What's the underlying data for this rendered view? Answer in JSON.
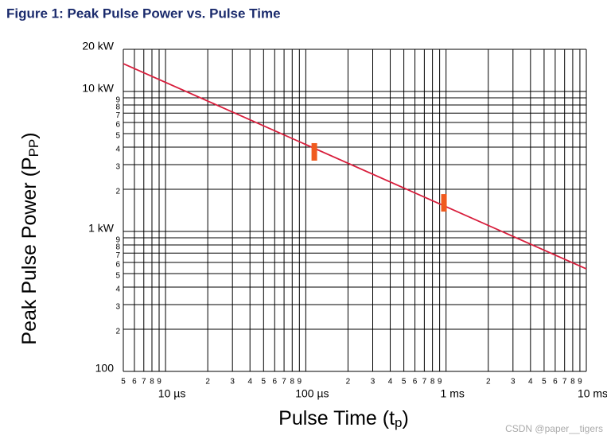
{
  "chart_data": {
    "type": "line",
    "title": "Figure 1: Peak Pulse Power vs. Pulse Time",
    "x_label": {
      "text": "Pulse Time (t",
      "sub": "p",
      "end": ")"
    },
    "y_label": {
      "text": "Peak Pulse Power (P",
      "sub": "PP",
      "end": ")"
    },
    "watermark": "CSDN @paper__tigers",
    "log_x": true,
    "log_y": true,
    "grid": true,
    "xlim": [
      5,
      10000
    ],
    "ylim": [
      100,
      20000
    ],
    "xticks": [
      5,
      6,
      7,
      8,
      9,
      {
        "value": 10,
        "label": "10 µs"
      },
      {
        "value": 20,
        "label": "2"
      },
      {
        "value": 30,
        "label": "3"
      },
      {
        "value": 40,
        "label": "4"
      },
      {
        "value": 50,
        "label": "5"
      },
      {
        "value": 60,
        "label": "6"
      },
      {
        "value": 70,
        "label": "7"
      },
      {
        "value": 80,
        "label": "8"
      },
      {
        "value": 90,
        "label": "9"
      },
      {
        "value": 100,
        "label": "100 µs"
      },
      {
        "value": 200,
        "label": "2"
      },
      {
        "value": 300,
        "label": "3"
      },
      {
        "value": 400,
        "label": "4"
      },
      {
        "value": 500,
        "label": "5"
      },
      {
        "value": 600,
        "label": "6"
      },
      {
        "value": 700,
        "label": "7"
      },
      {
        "value": 800,
        "label": "8"
      },
      {
        "value": 900,
        "label": "9"
      },
      {
        "value": 1000,
        "label": "1 ms"
      },
      {
        "value": 2000,
        "label": "2"
      },
      {
        "value": 3000,
        "label": "3"
      },
      {
        "value": 4000,
        "label": "4"
      },
      {
        "value": 5000,
        "label": "5"
      },
      {
        "value": 6000,
        "label": "6"
      },
      {
        "value": 7000,
        "label": "7"
      },
      {
        "value": 8000,
        "label": "8"
      },
      {
        "value": 9000,
        "label": "9"
      },
      {
        "value": 10000,
        "label": "10 ms"
      }
    ],
    "yticks": [
      100,
      {
        "value": 200,
        "label": "2"
      },
      {
        "value": 300,
        "label": "3"
      },
      {
        "value": 400,
        "label": "4"
      },
      {
        "value": 500,
        "label": "5"
      },
      {
        "value": 600,
        "label": "6"
      },
      {
        "value": 700,
        "label": "7"
      },
      {
        "value": 800,
        "label": "8"
      },
      {
        "value": 900,
        "label": "9"
      },
      {
        "value": 1000,
        "label": "1 kW"
      },
      {
        "value": 2000,
        "label": "2"
      },
      {
        "value": 3000,
        "label": "3"
      },
      {
        "value": 4000,
        "label": "4"
      },
      {
        "value": 5000,
        "label": "5"
      },
      {
        "value": 6000,
        "label": "6"
      },
      {
        "value": 7000,
        "label": "7"
      },
      {
        "value": 8000,
        "label": "8"
      },
      {
        "value": 9000,
        "label": "9"
      },
      {
        "value": 10000,
        "label": "10 kW"
      },
      {
        "value": 20000,
        "label": "20 kW"
      }
    ],
    "series": [
      {
        "color": "#d81e3c",
        "x": [
          5,
          10000
        ],
        "values": [
          15800,
          540
        ]
      },
      {
        "color": "#f05a1e",
        "marker": "bar",
        "x": [
          115,
          966
        ],
        "values": [
          3700,
          1600
        ]
      }
    ]
  }
}
